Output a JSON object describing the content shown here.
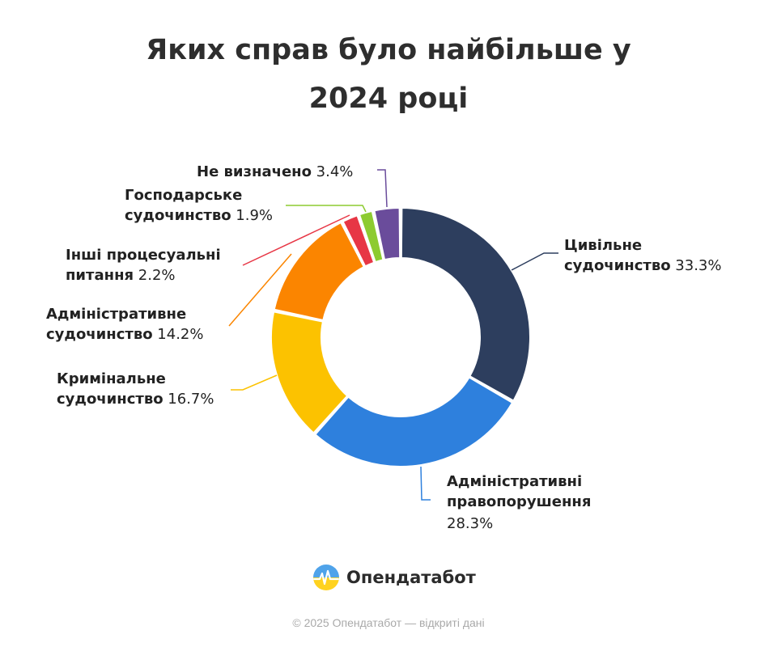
{
  "chart_data": {
    "type": "pie",
    "variant": "donut",
    "title": "Яких справ було найбільше у 2024 році",
    "unit": "%",
    "slices": [
      {
        "label": "Цивільне судочинство",
        "value": 33.3,
        "color": "#2d3e5e"
      },
      {
        "label": "Адміністративні правопорушення",
        "value": 28.3,
        "color": "#2e80dd"
      },
      {
        "label": "Кримінальне судочинство",
        "value": 16.7,
        "color": "#fcc200"
      },
      {
        "label": "Адміністративне судочинство",
        "value": 14.2,
        "color": "#fb8500"
      },
      {
        "label": "Інші процесуальні питання",
        "value": 2.2,
        "color": "#e73645"
      },
      {
        "label": "Господарське судочинство",
        "value": 1.9,
        "color": "#8dcb30"
      },
      {
        "label": "Не визначено",
        "value": 3.4,
        "color": "#6a4c9b"
      }
    ],
    "label_lines": [
      [
        {
          "text": "Цивільне",
          "bold": true
        }
      ],
      [
        {
          "text": "судочинство",
          "bold": true
        },
        {
          "text": " 33.3%",
          "bold": false
        }
      ],
      [
        {
          "text": "Адміністративні",
          "bold": true
        }
      ],
      [
        {
          "text": "правопорушення",
          "bold": true
        }
      ],
      [
        {
          "text": "28.3%",
          "bold": false
        }
      ],
      [
        {
          "text": "Кримінальне",
          "bold": true
        }
      ],
      [
        {
          "text": "судочинство",
          "bold": true
        },
        {
          "text": " 16.7%",
          "bold": false
        }
      ],
      [
        {
          "text": "Адміністративне",
          "bold": true
        }
      ],
      [
        {
          "text": "судочинство",
          "bold": true
        },
        {
          "text": " 14.2%",
          "bold": false
        }
      ],
      [
        {
          "text": "Інші процесуальні",
          "bold": true
        }
      ],
      [
        {
          "text": "питання",
          "bold": true
        },
        {
          "text": " 2.2%",
          "bold": false
        }
      ],
      [
        {
          "text": "Господарське",
          "bold": true
        }
      ],
      [
        {
          "text": "судочинство",
          "bold": true
        },
        {
          "text": " 1.9%",
          "bold": false
        }
      ],
      [
        {
          "text": "Не визначено",
          "bold": true
        },
        {
          "text": " 3.4%",
          "bold": false
        }
      ]
    ]
  },
  "logo": {
    "name": "Опендатабот",
    "icon": "opendatabot-logo-icon"
  },
  "footer": "© 2025 Опендатабот — відкриті дані"
}
